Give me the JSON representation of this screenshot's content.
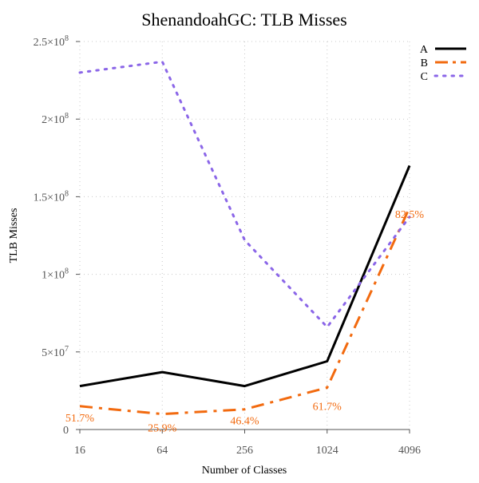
{
  "chart_data": {
    "type": "line",
    "title": "ShenandoahGC: TLB Misses",
    "xlabel": "Number of Classes",
    "ylabel": "TLB Misses",
    "x_scale": "log2",
    "x": [
      16,
      64,
      256,
      1024,
      4096
    ],
    "x_tick_labels": [
      "16",
      "64",
      "256",
      "1024",
      "4096"
    ],
    "ylim": [
      0,
      250000000
    ],
    "y_ticks": [
      0,
      50000000,
      100000000,
      150000000,
      200000000,
      250000000
    ],
    "y_tick_labels": [
      {
        "mantissa": "0",
        "exp": ""
      },
      {
        "mantissa": "5×10",
        "exp": "7"
      },
      {
        "mantissa": "1×10",
        "exp": "8"
      },
      {
        "mantissa": "1.5×10",
        "exp": "8"
      },
      {
        "mantissa": "2×10",
        "exp": "8"
      },
      {
        "mantissa": "2.5×10",
        "exp": "8"
      }
    ],
    "grid": true,
    "legend_position": "top-right",
    "series": [
      {
        "name": "A",
        "color": "#000000",
        "style": "solid",
        "values": [
          28000000,
          37000000,
          28000000,
          44000000,
          170000000
        ]
      },
      {
        "name": "B",
        "color": "#f26a0f",
        "style": "dashdot",
        "values": [
          15000000,
          10000000,
          13000000,
          27000000,
          143000000
        ]
      },
      {
        "name": "C",
        "color": "#8b66e8",
        "style": "dotted",
        "values": [
          230000000,
          237000000,
          122000000,
          66000000,
          137000000
        ]
      }
    ],
    "annotations": [
      {
        "text": "51.7%",
        "x": 16,
        "y": 15000000,
        "color": "#f26a0f"
      },
      {
        "text": "25.9%",
        "x": 64,
        "y": 10000000,
        "color": "#f26a0f"
      },
      {
        "text": "46.4%",
        "x": 256,
        "y": 13000000,
        "color": "#f26a0f"
      },
      {
        "text": "61.7%",
        "x": 1024,
        "y": 27000000,
        "color": "#f26a0f"
      },
      {
        "text": "82.5%",
        "x": 4096,
        "y": 143000000,
        "color": "#f26a0f"
      }
    ]
  }
}
